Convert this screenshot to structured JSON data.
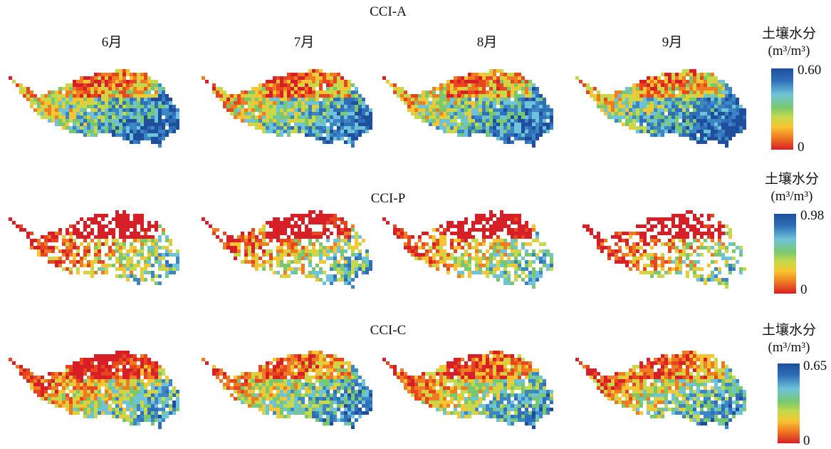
{
  "months": [
    "6月",
    "7月",
    "8月",
    "9月"
  ],
  "rows": [
    {
      "title": "CCI-A",
      "legend_title": "土壤水分",
      "legend_unit": "(m³/m³)",
      "max_label": "0.60",
      "min_label": "0"
    },
    {
      "title": "CCI-P",
      "legend_title": "土壤水分",
      "legend_unit": "(m³/m³)",
      "max_label": "0.98",
      "min_label": "0"
    },
    {
      "title": "CCI-C",
      "legend_title": "土壤水分",
      "legend_unit": "(m³/m³)",
      "max_label": "0.65",
      "min_label": "0"
    }
  ],
  "colors": {
    "high": "#1f4e9c",
    "mid": "#79c86f",
    "low": "#d61f26"
  },
  "maps": [
    [
      {
        "wet_fraction": 0.45,
        "moist_fraction": 0.25,
        "dry_fraction": 0.3,
        "coverage": 0.98
      },
      {
        "wet_fraction": 0.4,
        "moist_fraction": 0.3,
        "dry_fraction": 0.3,
        "coverage": 0.98
      },
      {
        "wet_fraction": 0.45,
        "moist_fraction": 0.25,
        "dry_fraction": 0.3,
        "coverage": 0.98
      },
      {
        "wet_fraction": 0.5,
        "moist_fraction": 0.2,
        "dry_fraction": 0.3,
        "coverage": 0.98
      }
    ],
    [
      {
        "wet_fraction": 0.15,
        "moist_fraction": 0.3,
        "dry_fraction": 0.55,
        "coverage": 0.65
      },
      {
        "wet_fraction": 0.2,
        "moist_fraction": 0.35,
        "dry_fraction": 0.45,
        "coverage": 0.7
      },
      {
        "wet_fraction": 0.2,
        "moist_fraction": 0.3,
        "dry_fraction": 0.5,
        "coverage": 0.7
      },
      {
        "wet_fraction": 0.15,
        "moist_fraction": 0.4,
        "dry_fraction": 0.45,
        "coverage": 0.55
      }
    ],
    [
      {
        "wet_fraction": 0.25,
        "moist_fraction": 0.4,
        "dry_fraction": 0.35,
        "coverage": 0.95
      },
      {
        "wet_fraction": 0.35,
        "moist_fraction": 0.4,
        "dry_fraction": 0.25,
        "coverage": 0.92
      },
      {
        "wet_fraction": 0.3,
        "moist_fraction": 0.45,
        "dry_fraction": 0.25,
        "coverage": 0.92
      },
      {
        "wet_fraction": 0.3,
        "moist_fraction": 0.45,
        "dry_fraction": 0.25,
        "coverage": 0.88
      }
    ]
  ]
}
